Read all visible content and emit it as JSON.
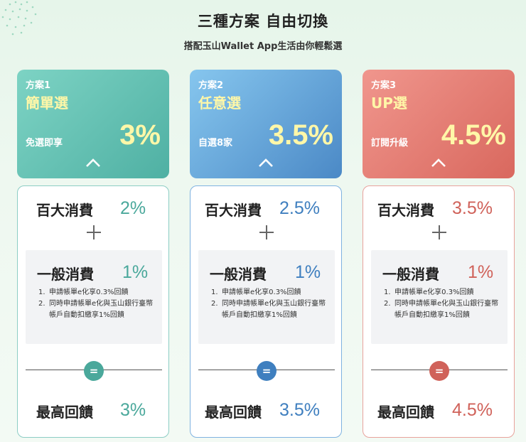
{
  "header": {
    "title": "三種方案 自由切換",
    "subtitle": "搭配玉山Wallet App生活由你輕鬆選"
  },
  "plans": [
    {
      "num": "方案1",
      "name": "簡單選",
      "desc": "免選即享",
      "rate": "3%",
      "big_label": "百大消費",
      "big_pct": "2%",
      "general_label": "一般消費",
      "general_pct": "1%",
      "notes": [
        "申請帳單e化享0.3%回饋",
        "同時申請帳單e化與玉山銀行臺幣帳戶自動扣繳享1%回饋"
      ],
      "max_label": "最高回饋",
      "max_pct": "3%",
      "eq": "=",
      "colors": {
        "grad_from": "#7dd3c4",
        "grad_to": "#4fb0a3",
        "accent": "#4aa89b",
        "border": "#8ccdc4"
      }
    },
    {
      "num": "方案2",
      "name": "任意選",
      "desc": "自選8家",
      "rate": "3.5%",
      "big_label": "百大消費",
      "big_pct": "2.5%",
      "general_label": "一般消費",
      "general_pct": "1%",
      "notes": [
        "申請帳單e化享0.3%回饋",
        "同時申請帳單e化與玉山銀行臺幣帳戶自動扣繳享1%回饋"
      ],
      "max_label": "最高回饋",
      "max_pct": "3.5%",
      "eq": "=",
      "colors": {
        "grad_from": "#86c6ee",
        "grad_to": "#4b89c6",
        "accent": "#3f7fbf",
        "border": "#7fb2e0"
      }
    },
    {
      "num": "方案3",
      "name": "UP選",
      "desc": "訂閱升級",
      "rate": "4.5%",
      "big_label": "百大消費",
      "big_pct": "3.5%",
      "general_label": "一般消費",
      "general_pct": "1%",
      "notes": [
        "申請帳單e化享0.3%回饋",
        "同時申請帳單e化與玉山銀行臺幣帳戶自動扣繳享1%回饋"
      ],
      "max_label": "最高回饋",
      "max_pct": "4.5%",
      "eq": "=",
      "colors": {
        "grad_from": "#f0968d",
        "grad_to": "#d9685e",
        "accent": "#d0625a",
        "border": "#e8a29c"
      }
    }
  ],
  "icons": {
    "chevron": "chevron-up-icon",
    "plus": "plus-icon",
    "equals": "equals-icon"
  },
  "rate_color": "#fff7a8"
}
